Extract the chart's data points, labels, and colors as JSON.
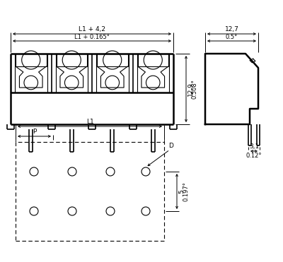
{
  "bg_color": "#ffffff",
  "lc": "#000000",
  "dim_L1_4": "L1 + 4,2",
  "dim_L1_165": "L1 + 0.165°",
  "dim_127": "12,7",
  "dim_05": "0.5°",
  "dim_129": "12,9",
  "dim_0508": "0.508°",
  "dim_31": "3,1",
  "dim_012": "0.12°",
  "dim_L1": "L1",
  "dim_P": "P",
  "dim_D": "D",
  "dim_5": "5",
  "dim_0197": "0.197°"
}
